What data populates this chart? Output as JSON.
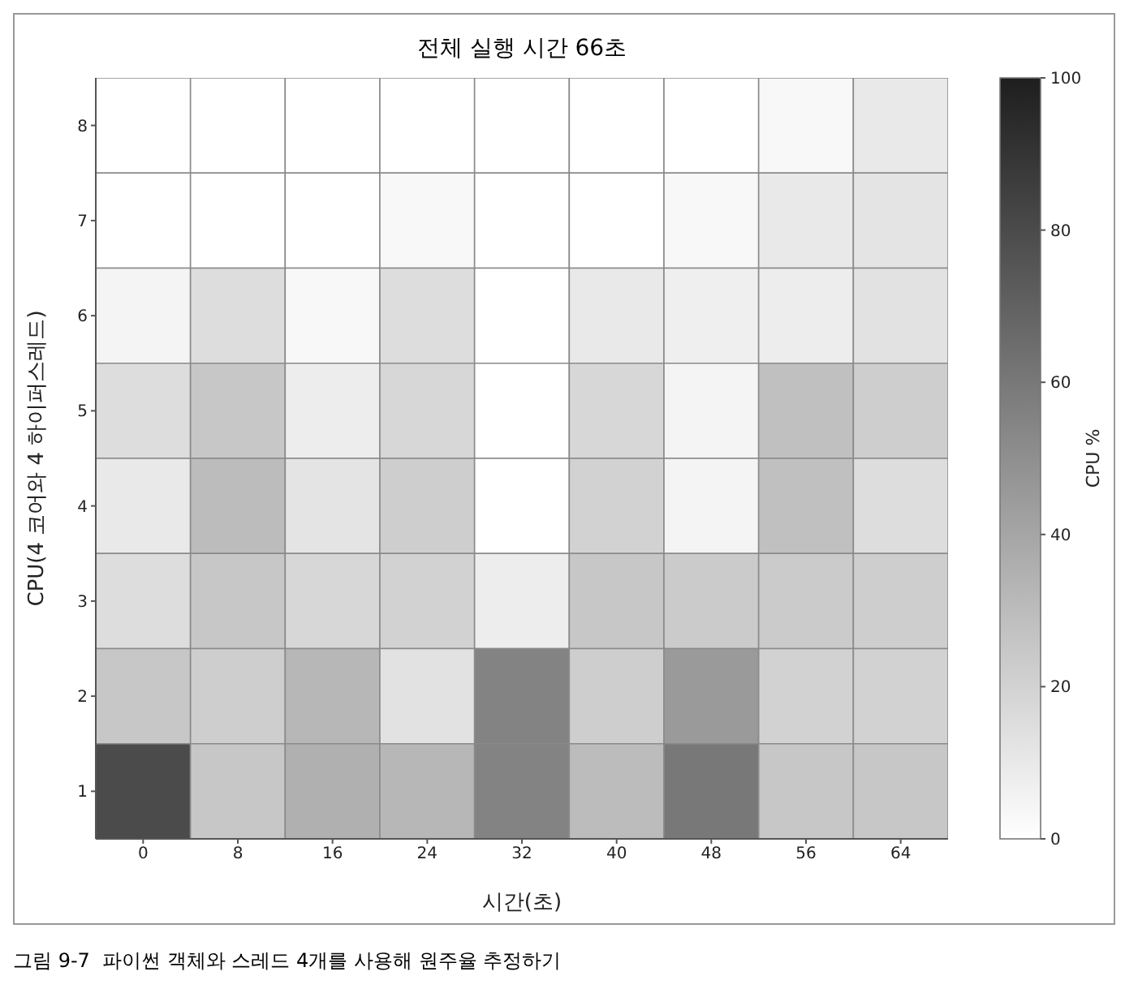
{
  "chart_data": {
    "type": "heatmap",
    "title": "전체 실행 시간 66초",
    "xlabel": "시간(초)",
    "ylabel": "CPU(4 코어와 4 하이퍼스레드)",
    "clabel": "CPU %",
    "annotations": [
      "그림 9-7  파이썬 객체와 스레드 4개를 사용해 원주율 추정하기"
    ],
    "categories": [
      "0",
      "8",
      "16",
      "24",
      "32",
      "40",
      "48",
      "56",
      "64"
    ],
    "y_categories": [
      "8",
      "7",
      "6",
      "5",
      "4",
      "3",
      "2",
      "1"
    ],
    "cells": [
      [
        0,
        0,
        0,
        0,
        0,
        0,
        0,
        3,
        10
      ],
      [
        0,
        0,
        0,
        3,
        0,
        0,
        3,
        10,
        12
      ],
      [
        5,
        15,
        3,
        15,
        0,
        10,
        7,
        8,
        13
      ],
      [
        15,
        25,
        8,
        18,
        0,
        18,
        5,
        28,
        22
      ],
      [
        10,
        30,
        12,
        22,
        0,
        20,
        5,
        28,
        15
      ],
      [
        15,
        25,
        18,
        20,
        8,
        25,
        23,
        23,
        22
      ],
      [
        25,
        22,
        32,
        13,
        55,
        22,
        45,
        20,
        20
      ],
      [
        80,
        25,
        35,
        32,
        55,
        30,
        60,
        25,
        25
      ]
    ],
    "clim": [
      0,
      100
    ],
    "cticks": [
      0,
      20,
      40,
      60,
      80,
      100
    ]
  }
}
